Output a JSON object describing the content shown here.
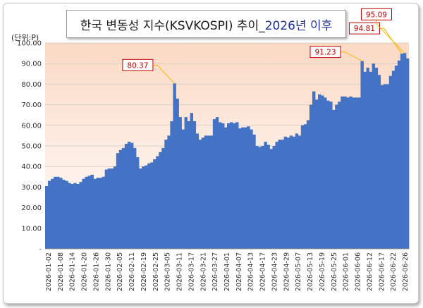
{
  "title": {
    "main": "한국 변동성 지수(KSVKOSPI) 추이_",
    "highlight": "2026년 이후"
  },
  "unit_label": "(단위:P)",
  "chart_data": {
    "type": "area",
    "title": "한국 변동성 지수(KSVKOSPI) 추이_2026년 이후",
    "ylabel": "(단위:P)",
    "ylim": [
      0,
      100
    ],
    "yticks": [
      "-",
      "10.00",
      "20.00",
      "30.00",
      "40.00",
      "50.00",
      "60.00",
      "70.00",
      "80.00",
      "90.00",
      "100.00"
    ],
    "x_tick_labels": [
      "2026-01-02",
      "2026-01-08",
      "2026-01-14",
      "2026-01-20",
      "2026-01-26",
      "2026-01-30",
      "2026-02-05",
      "2026-02-11",
      "2026-02-19",
      "2026-02-25",
      "2026-03-05",
      "2026-03-11",
      "2026-03-17",
      "2026-03-21",
      "2026-03-27",
      "2026-04-01",
      "2026-04-07",
      "2026-04-13",
      "2026-04-17",
      "2026-04-23",
      "2026-04-29",
      "2026-05-07",
      "2026-05-13",
      "2026-05-19",
      "2026-05-25",
      "2026-06-01",
      "2026-06-06",
      "2026-06-12",
      "2026-06-17",
      "2026-06-22",
      "2026-06-26"
    ],
    "values": [
      30.5,
      33.0,
      34.0,
      35.0,
      35.0,
      34.5,
      33.5,
      33.0,
      32.0,
      31.5,
      32.0,
      31.5,
      32.5,
      34.0,
      35.0,
      35.5,
      36.0,
      34.0,
      34.5,
      34.5,
      35.0,
      38.5,
      39.0,
      39.0,
      40.0,
      46.5,
      48.0,
      49.0,
      51.0,
      52.0,
      51.5,
      49.0,
      44.5,
      39.0,
      40.0,
      40.5,
      41.5,
      42.0,
      43.5,
      45.0,
      47.0,
      49.0,
      53.0,
      55.0,
      62.0,
      80.37,
      73.0,
      64.0,
      58.0,
      64.0,
      62.0,
      66.0,
      62.0,
      56.0,
      53.0,
      54.0,
      55.0,
      55.0,
      55.0,
      63.0,
      64.0,
      61.5,
      61.0,
      59.0,
      61.0,
      61.5,
      61.0,
      61.5,
      58.5,
      59.0,
      59.0,
      59.5,
      58.0,
      55.5,
      50.0,
      49.5,
      50.0,
      52.0,
      50.5,
      48.5,
      50.0,
      52.0,
      53.0,
      53.0,
      54.5,
      54.0,
      55.0,
      54.5,
      56.0,
      55.0,
      60.0,
      60.5,
      62.5,
      70.0,
      76.5,
      72.5,
      75.0,
      74.5,
      73.5,
      72.0,
      71.5,
      67.5,
      70.0,
      71.5,
      74.0,
      74.0,
      73.5,
      74.0,
      73.5,
      73.5,
      73.5,
      91.23,
      86.0,
      88.0,
      86.0,
      90.0,
      88.0,
      84.5,
      79.5,
      80.0,
      80.0,
      84.0,
      86.5,
      89.0,
      91.5,
      94.81,
      95.09,
      92.5
    ],
    "annotations": [
      {
        "label": "80.37",
        "index": 45
      },
      {
        "label": "91.23",
        "index": 111
      },
      {
        "label": "94.81",
        "index": 125
      },
      {
        "label": "95.09",
        "index": 126
      }
    ],
    "grid": true,
    "colors": {
      "fill": "#4472c4",
      "plot_bg_top": "#fbd9c4",
      "plot_bg_bottom": "#ffffff",
      "callout_border": "#c00000",
      "callout_text": "#c00000",
      "leader_line": "#f5b800"
    }
  }
}
